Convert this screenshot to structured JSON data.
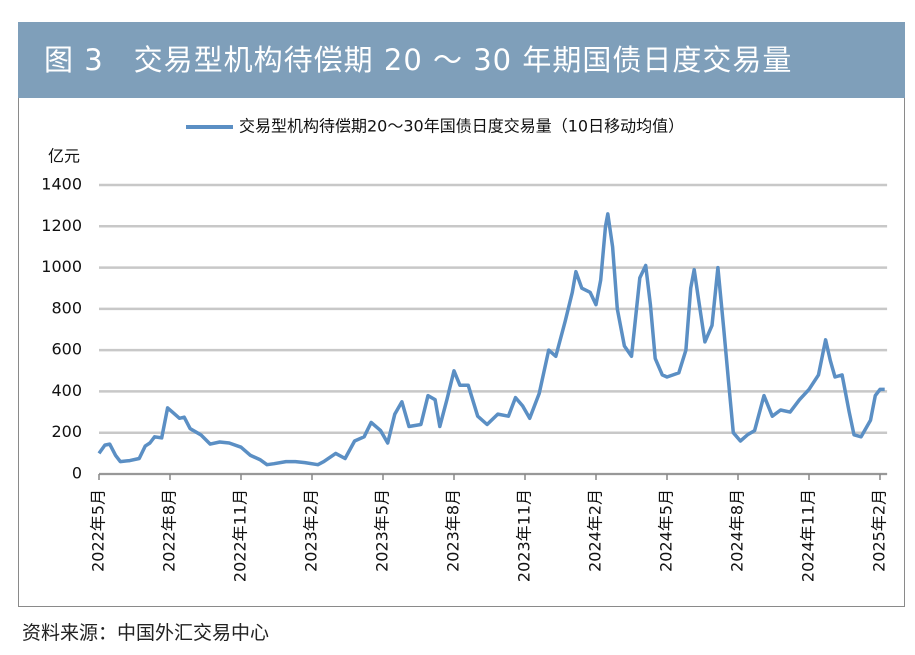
{
  "header": {
    "title": "图 3　交易型机构待偿期 20 ～ 30 年期国债日度交易量"
  },
  "footer": {
    "source": "资料来源：中国外汇交易中心"
  },
  "chart_data": {
    "type": "line",
    "y_label": "亿元",
    "xlim": [
      0,
      33.3
    ],
    "ylim": [
      0,
      1400
    ],
    "yticks": [
      0,
      200,
      400,
      600,
      800,
      1000,
      1200,
      1400
    ],
    "xticks": [
      {
        "value": 0,
        "label": "2022年5月"
      },
      {
        "value": 3,
        "label": "2022年8月"
      },
      {
        "value": 6,
        "label": "2022年11月"
      },
      {
        "value": 9,
        "label": "2023年2月"
      },
      {
        "value": 12,
        "label": "2023年5月"
      },
      {
        "value": 15,
        "label": "2023年8月"
      },
      {
        "value": 18,
        "label": "2023年11月"
      },
      {
        "value": 21,
        "label": "2024年2月"
      },
      {
        "value": 24,
        "label": "2024年5月"
      },
      {
        "value": 27,
        "label": "2024年8月"
      },
      {
        "value": 30,
        "label": "2024年11月"
      },
      {
        "value": 33,
        "label": "2025年2月"
      }
    ],
    "grid": true,
    "legend": "top",
    "x": [
      0,
      0.25,
      0.45,
      0.7,
      0.9,
      1.3,
      1.7,
      1.95,
      2.15,
      2.35,
      2.65,
      2.9,
      3.1,
      3.4,
      3.6,
      3.85,
      4.3,
      4.7,
      5.1,
      5.5,
      6,
      6.4,
      6.8,
      7.1,
      7.4,
      7.9,
      8.3,
      8.7,
      9.25,
      9.5,
      10,
      10.4,
      10.8,
      11.2,
      11.5,
      11.9,
      12.2,
      12.5,
      12.8,
      13.1,
      13.6,
      13.9,
      14.2,
      14.4,
      14.7,
      15,
      15.25,
      15.6,
      16,
      16.4,
      16.85,
      17.3,
      17.6,
      17.9,
      18.2,
      18.6,
      19,
      19.3,
      19.7,
      20,
      20.15,
      20.4,
      20.75,
      21,
      21.2,
      21.4,
      21.5,
      21.7,
      21.9,
      22.2,
      22.5,
      22.85,
      23.1,
      23.3,
      23.5,
      23.8,
      24,
      24.5,
      24.8,
      25,
      25.15,
      25.3,
      25.6,
      25.9,
      26.15,
      26.4,
      26.6,
      26.8,
      27.1,
      27.4,
      27.7,
      28.1,
      28.45,
      28.8,
      29.2,
      29.6,
      30,
      30.4,
      30.7,
      30.9,
      31.1,
      31.4,
      31.7,
      31.9,
      32.2,
      32.6,
      32.8,
      33,
      33.2
    ],
    "series": [
      {
        "name": "交易型机构待偿期20～30年国债日度交易量（10日移动均值）",
        "color": "#5b8fc4",
        "values": [
          100,
          140,
          145,
          90,
          60,
          65,
          75,
          135,
          150,
          180,
          175,
          320,
          300,
          270,
          275,
          220,
          190,
          145,
          155,
          150,
          130,
          90,
          70,
          45,
          50,
          60,
          60,
          55,
          45,
          60,
          100,
          75,
          160,
          180,
          250,
          210,
          150,
          290,
          350,
          230,
          240,
          380,
          360,
          230,
          360,
          500,
          430,
          430,
          280,
          240,
          290,
          280,
          370,
          330,
          270,
          390,
          600,
          570,
          740,
          880,
          980,
          900,
          880,
          820,
          940,
          1200,
          1260,
          1100,
          800,
          620,
          570,
          950,
          1010,
          820,
          560,
          480,
          470,
          490,
          600,
          900,
          990,
          870,
          640,
          720,
          1000,
          700,
          450,
          200,
          160,
          190,
          210,
          380,
          280,
          310,
          300,
          360,
          410,
          480,
          650,
          550,
          470,
          480,
          300,
          190,
          180,
          260,
          380,
          410,
          410
        ]
      }
    ]
  }
}
